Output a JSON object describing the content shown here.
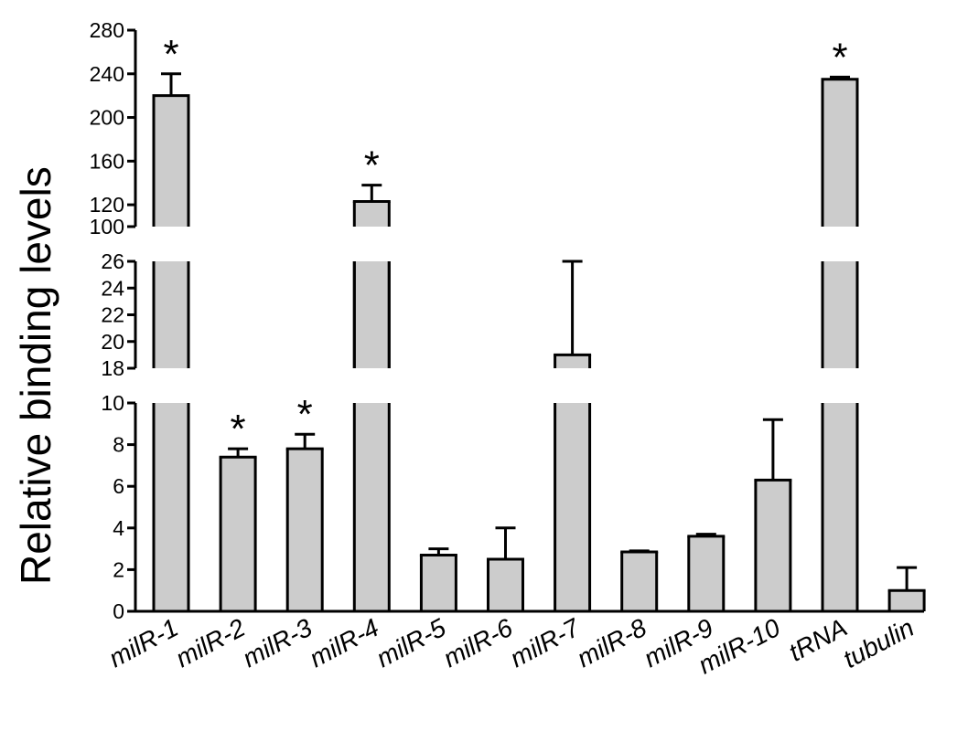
{
  "chart_data": {
    "type": "bar",
    "ylabel": "Relative binding levels",
    "y_axis_broken": true,
    "y_segments": [
      {
        "range": [
          0,
          10
        ],
        "ticks": [
          "0",
          "2",
          "4",
          "6",
          "8",
          "10"
        ]
      },
      {
        "range": [
          18,
          26
        ],
        "ticks": [
          "18",
          "20",
          "22",
          "24",
          "26"
        ]
      },
      {
        "range": [
          100,
          280
        ],
        "ticks": [
          "100",
          "120",
          "160",
          "200",
          "240",
          "280"
        ]
      }
    ],
    "categories": [
      "milR-1",
      "milR-2",
      "milR-3",
      "milR-4",
      "milR-5",
      "milR-6",
      "milR-7",
      "milR-8",
      "milR-9",
      "milR-10",
      "tRNA",
      "tubulin"
    ],
    "values": [
      220,
      7.4,
      7.8,
      123,
      2.7,
      2.5,
      19,
      2.85,
      3.6,
      6.3,
      235,
      1.0
    ],
    "error_upper": [
      240,
      7.8,
      8.5,
      138,
      3.0,
      4.0,
      26,
      2.9,
      3.7,
      9.2,
      237,
      2.1
    ],
    "significance_marker": "*",
    "significant": [
      true,
      true,
      true,
      true,
      false,
      false,
      false,
      false,
      false,
      false,
      true,
      false
    ],
    "bar_color": "#cccccc",
    "grid": false,
    "legend": "none"
  }
}
